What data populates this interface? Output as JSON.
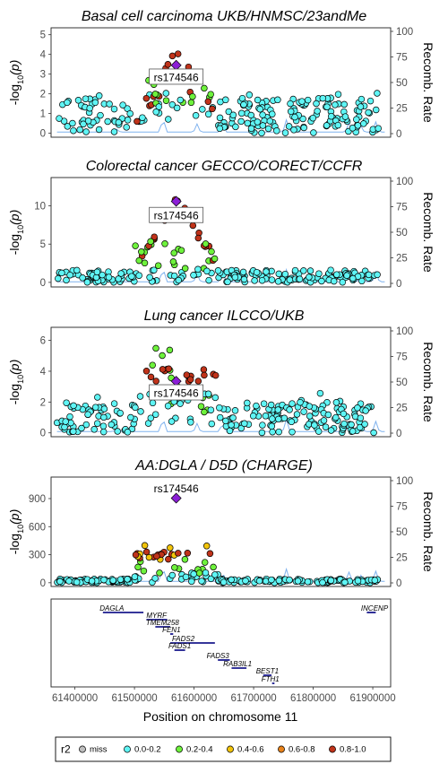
{
  "chart_data": {
    "type": "scatter",
    "x_axis": {
      "label": "Position on chromosome 11",
      "ticks": [
        61400000,
        61500000,
        61600000,
        61700000,
        61800000,
        61900000
      ],
      "tick_labels": [
        "61400000",
        "61500000",
        "61600000",
        "61700000",
        "61800000",
        "61900000"
      ],
      "xlim": [
        61360000,
        61930000
      ]
    },
    "right_axis": {
      "label": "Recomb. Rate",
      "ticks": [
        0,
        25,
        50,
        75,
        100
      ],
      "ylim": [
        0,
        100
      ]
    },
    "lead_snp": {
      "label": "rs174546",
      "x": 61570000
    },
    "legend": {
      "title": "r2",
      "placement": "bottom",
      "items": [
        {
          "label": "miss",
          "color": "#bebebe"
        },
        {
          "label": "0.0-0.2",
          "color": "#5ff5f5"
        },
        {
          "label": "0.2-0.4",
          "color": "#6ef23c"
        },
        {
          "label": "0.4-0.6",
          "color": "#f2c40a"
        },
        {
          "label": "0.6-0.8",
          "color": "#e8821a"
        },
        {
          "label": "0.8-1.0",
          "color": "#c0331a"
        }
      ]
    },
    "recomb_line_color": "#7fb2ee",
    "lead_color": "#8b1fd6",
    "panels": [
      {
        "title": "Basal cell carcinoma UKB/HNMSC/23andMe",
        "y_ticks": [
          0,
          1,
          2,
          3,
          4,
          5
        ],
        "ylim": [
          -0.2,
          5.35
        ],
        "lead_y": 3.45,
        "label_y": 2.85,
        "seed": 11,
        "profile": "bcc"
      },
      {
        "title": "Colorectal cancer GECCO/CORECT/CCFR",
        "y_ticks": [
          0,
          5,
          10
        ],
        "ylim": [
          -0.6,
          13.7
        ],
        "lead_y": 10.6,
        "label_y": 8.75,
        "seed": 23,
        "profile": "crc"
      },
      {
        "title": "Lung cancer ILCCO/UKB",
        "y_ticks": [
          0,
          2,
          4,
          6
        ],
        "ylim": [
          -0.25,
          6.85
        ],
        "lead_y": 3.35,
        "label_y": 2.6,
        "seed": 37,
        "profile": "lung"
      },
      {
        "title": "AA:DGLA / D5D (CHARGE)",
        "y_ticks": [
          0,
          300,
          600,
          900
        ],
        "ylim": [
          -40,
          1130
        ],
        "lead_y": 905,
        "label_y": 1010,
        "seed": 53,
        "profile": "dgla"
      }
    ],
    "genes": [
      {
        "name": "DAGLA",
        "start": 61447000,
        "end": 61515000,
        "row": 0,
        "label_x": 61462000
      },
      {
        "name": "INCENP",
        "start": 61890000,
        "end": 61905000,
        "row": 0,
        "label_x": 61903000
      },
      {
        "name": "MYRF",
        "start": 61520000,
        "end": 61555000,
        "row": 1,
        "label_x": 61537000
      },
      {
        "name": "TMEM258",
        "start": 61535000,
        "end": 61560000,
        "row": 2,
        "label_x": 61547000
      },
      {
        "name": "FEN1",
        "start": 61560000,
        "end": 61565000,
        "row": 3,
        "label_x": 61562000
      },
      {
        "name": "FADS2",
        "start": 61560000,
        "end": 61635000,
        "row": 4,
        "label_x": 61582000
      },
      {
        "name": "FADS1",
        "start": 61567000,
        "end": 61585000,
        "row": 5,
        "label_x": 61576000
      },
      {
        "name": "FADS3",
        "start": 61640000,
        "end": 61660000,
        "row": 6,
        "label_x": 61640000
      },
      {
        "name": "RAB3IL1",
        "start": 61663000,
        "end": 61688000,
        "row": 7,
        "label_x": 61673000
      },
      {
        "name": "BEST1",
        "start": 61716000,
        "end": 61730000,
        "row": 8,
        "label_x": 61723000
      },
      {
        "name": "FTH1",
        "start": 61731000,
        "end": 61735000,
        "row": 9,
        "label_x": 61728000
      }
    ]
  }
}
